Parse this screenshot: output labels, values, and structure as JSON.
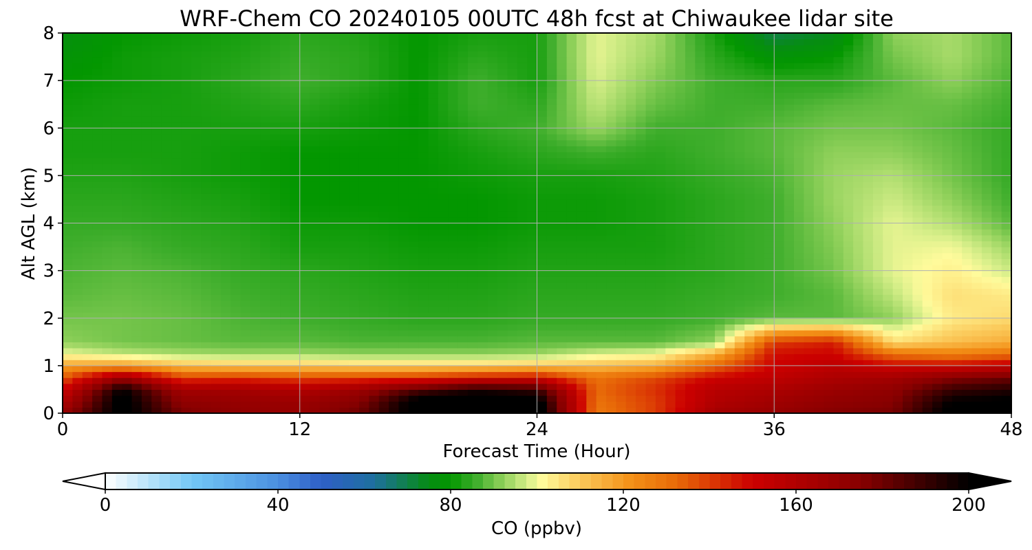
{
  "chart_data": {
    "type": "heatmap",
    "title": "WRF-Chem CO  20240105 00UTC 48h fcst at Chiwaukee lidar site",
    "xlabel": "Forecast Time (Hour)",
    "ylabel": "Alt AGL (km)",
    "xlim": [
      0,
      48
    ],
    "ylim": [
      0,
      8
    ],
    "xticks": [
      "0",
      "12",
      "24",
      "36",
      "48"
    ],
    "yticks": [
      "0",
      "1",
      "2",
      "3",
      "4",
      "5",
      "6",
      "7",
      "8"
    ],
    "grid": true,
    "colorbar": {
      "label": "CO  (ppbv)",
      "min": 0,
      "max": 200,
      "ticks": [
        "0",
        "40",
        "80",
        "120",
        "160",
        "200"
      ],
      "extend": "both",
      "stops": [
        {
          "v": 0,
          "c": "#ffffff"
        },
        {
          "v": 20,
          "c": "#73c8f5"
        },
        {
          "v": 40,
          "c": "#4a8fe0"
        },
        {
          "v": 50,
          "c": "#2f5fc7"
        },
        {
          "v": 62,
          "c": "#1e6fa0"
        },
        {
          "v": 75,
          "c": "#068c12"
        },
        {
          "v": 80,
          "c": "#039700"
        },
        {
          "v": 86,
          "c": "#3fae2c"
        },
        {
          "v": 92,
          "c": "#8fd05a"
        },
        {
          "v": 98,
          "c": "#d8ef8a"
        },
        {
          "v": 101,
          "c": "#fffb9c"
        },
        {
          "v": 110,
          "c": "#fbc95a"
        },
        {
          "v": 122,
          "c": "#f38f16"
        },
        {
          "v": 132,
          "c": "#e86b08"
        },
        {
          "v": 150,
          "c": "#cc0000"
        },
        {
          "v": 175,
          "c": "#880000"
        },
        {
          "v": 200,
          "c": "#000000"
        }
      ],
      "under_color": "#ffffff",
      "over_color": "#000000"
    },
    "x": [
      0,
      3,
      6,
      9,
      12,
      15,
      18,
      21,
      24,
      27,
      30,
      33,
      36,
      39,
      42,
      45,
      48
    ],
    "y": [
      0,
      0.25,
      0.5,
      0.75,
      1,
      1.25,
      1.5,
      2,
      2.5,
      3,
      3.5,
      4,
      4.5,
      5,
      5.5,
      6,
      6.5,
      7,
      7.5,
      8
    ],
    "z": [
      [
        170,
        205,
        178,
        172,
        170,
        180,
        205,
        210,
        210,
        128,
        140,
        165,
        170,
        176,
        178,
        205,
        205
      ],
      [
        160,
        205,
        172,
        170,
        168,
        175,
        205,
        208,
        205,
        130,
        140,
        160,
        166,
        172,
        175,
        200,
        202
      ],
      [
        150,
        200,
        165,
        165,
        160,
        168,
        185,
        195,
        190,
        132,
        142,
        158,
        162,
        168,
        172,
        190,
        194
      ],
      [
        135,
        170,
        140,
        142,
        138,
        140,
        142,
        148,
        150,
        130,
        138,
        150,
        155,
        162,
        165,
        175,
        180
      ],
      [
        118,
        120,
        112,
        110,
        110,
        108,
        108,
        108,
        110,
        112,
        115,
        132,
        150,
        156,
        150,
        150,
        155
      ],
      [
        100,
        96,
        94,
        93,
        93,
        92,
        92,
        92,
        93,
        98,
        100,
        115,
        148,
        150,
        130,
        126,
        130
      ],
      [
        92,
        90,
        89,
        88,
        88,
        87,
        87,
        87,
        88,
        88,
        88,
        92,
        140,
        145,
        106,
        112,
        116
      ],
      [
        90,
        90,
        89,
        87,
        86,
        85,
        84,
        84,
        85,
        85,
        85,
        86,
        88,
        88,
        92,
        104,
        107
      ],
      [
        88,
        89,
        88,
        86,
        85,
        84,
        83,
        83,
        84,
        84,
        84,
        85,
        86,
        88,
        96,
        106,
        104
      ],
      [
        87,
        88,
        87,
        85,
        84,
        83,
        82,
        82,
        83,
        83,
        83,
        84,
        86,
        90,
        99,
        103,
        97
      ],
      [
        86,
        87,
        85,
        84,
        82,
        82,
        81,
        81,
        82,
        82,
        82,
        84,
        86,
        91,
        99,
        100,
        93
      ],
      [
        85,
        85,
        84,
        83,
        81,
        81,
        80,
        80,
        81,
        81,
        82,
        84,
        86,
        92,
        99,
        95,
        88
      ],
      [
        84,
        84,
        83,
        82,
        80,
        80,
        80,
        80,
        81,
        81,
        82,
        84,
        86,
        93,
        97,
        92,
        86
      ],
      [
        83,
        83,
        82,
        81,
        80,
        80,
        80,
        81,
        82,
        82,
        83,
        85,
        87,
        93,
        95,
        90,
        85
      ],
      [
        82,
        82,
        82,
        81,
        80,
        80,
        80,
        82,
        84,
        86,
        84,
        86,
        88,
        92,
        92,
        89,
        85
      ],
      [
        82,
        82,
        82,
        82,
        82,
        81,
        80,
        84,
        86,
        93,
        86,
        86,
        88,
        90,
        90,
        88,
        85
      ],
      [
        81,
        82,
        82,
        83,
        84,
        82,
        80,
        86,
        84,
        96,
        89,
        86,
        86,
        88,
        89,
        89,
        86
      ],
      [
        80,
        81,
        82,
        84,
        86,
        84,
        80,
        86,
        82,
        98,
        91,
        86,
        84,
        84,
        88,
        92,
        87
      ],
      [
        78,
        81,
        82,
        83,
        85,
        84,
        80,
        84,
        82,
        99,
        93,
        84,
        78,
        80,
        90,
        94,
        88
      ],
      [
        76,
        80,
        81,
        82,
        84,
        83,
        80,
        82,
        82,
        99,
        94,
        82,
        70,
        74,
        92,
        94,
        88
      ]
    ]
  }
}
